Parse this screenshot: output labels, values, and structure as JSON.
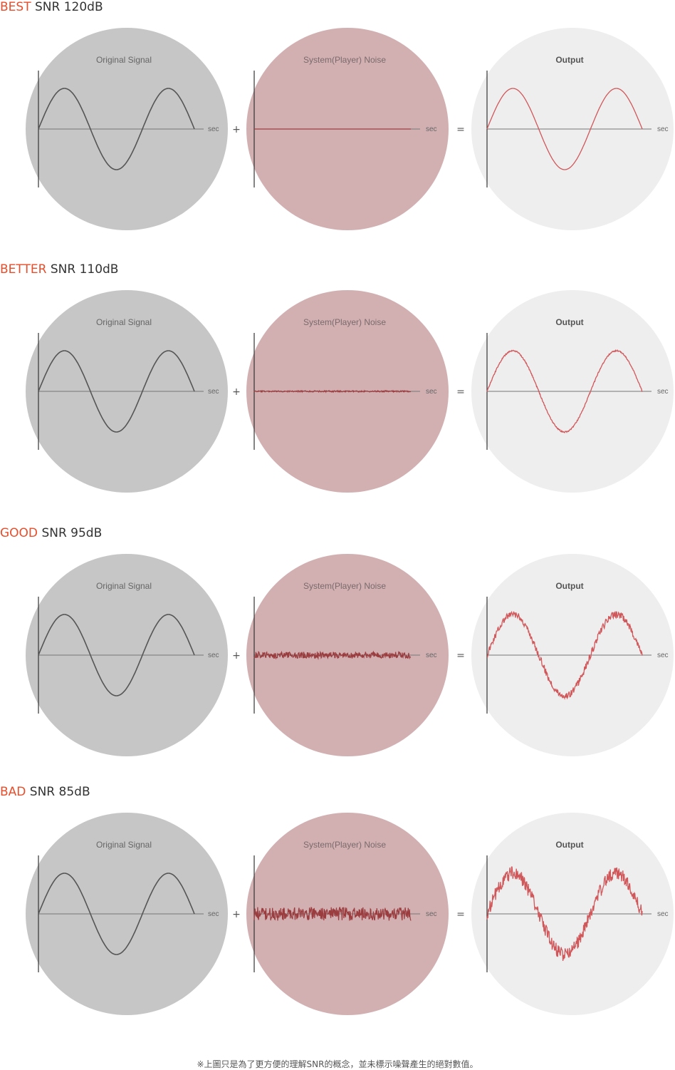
{
  "colors": {
    "grade_label": "#e84e2b",
    "signal_disc": "#c6c6c6",
    "noise_disc": "#d2b0b2",
    "output_disc": "#eeeeee",
    "signal_wave": "#555555",
    "noise_wave": "#9b3c3f",
    "output_wave": "#d0575a",
    "axis": "#777777"
  },
  "panel_titles": {
    "original": "Original Signal",
    "noise": "System(Player) Noise",
    "output": "Output"
  },
  "axis_label": "sec",
  "operators": {
    "plus": "+",
    "equals": "="
  },
  "sections": [
    {
      "grade": "BEST",
      "snr": "SNR 120dB",
      "noise_level": 0
    },
    {
      "grade": "BETTER",
      "snr": "SNR 110dB",
      "noise_level": 0.01
    },
    {
      "grade": "GOOD",
      "snr": "SNR 95dB",
      "noise_level": 0.05
    },
    {
      "grade": "BAD",
      "snr": "SNR 85dB",
      "noise_level": 0.1
    }
  ],
  "footnote": "※上圖只是為了更方便的理解SNR的概念，並未標示噪聲產生的絕對數值。"
}
